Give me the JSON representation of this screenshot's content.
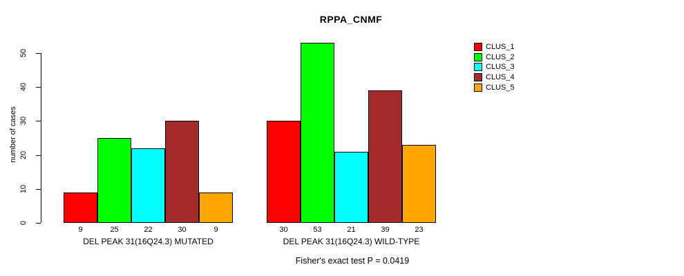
{
  "chart_data": {
    "type": "bar",
    "title": "RPPA_CNMF",
    "ylabel": "number of cases",
    "xlabel": "",
    "ylim": [
      0,
      55
    ],
    "yticks": [
      0,
      10,
      20,
      30,
      40,
      50
    ],
    "grid": false,
    "legend_position": "right",
    "series": [
      {
        "name": "CLUS_1",
        "color": "#FF0000"
      },
      {
        "name": "CLUS_2",
        "color": "#00FF00"
      },
      {
        "name": "CLUS_3",
        "color": "#00FFFF"
      },
      {
        "name": "CLUS_4",
        "color": "#A52A2A"
      },
      {
        "name": "CLUS_5",
        "color": "#FFA500"
      }
    ],
    "groups": [
      {
        "label": "DEL PEAK 31(16Q24.3) MUTATED",
        "values": [
          9,
          25,
          22,
          30,
          9
        ]
      },
      {
        "label": "DEL PEAK 31(16Q24.3) WILD-TYPE",
        "values": [
          30,
          53,
          21,
          39,
          23
        ]
      }
    ],
    "footnote": "Fisher's exact test P = 0.0419",
    "axis_color": "#000000",
    "bar_border_color": "#000000"
  }
}
